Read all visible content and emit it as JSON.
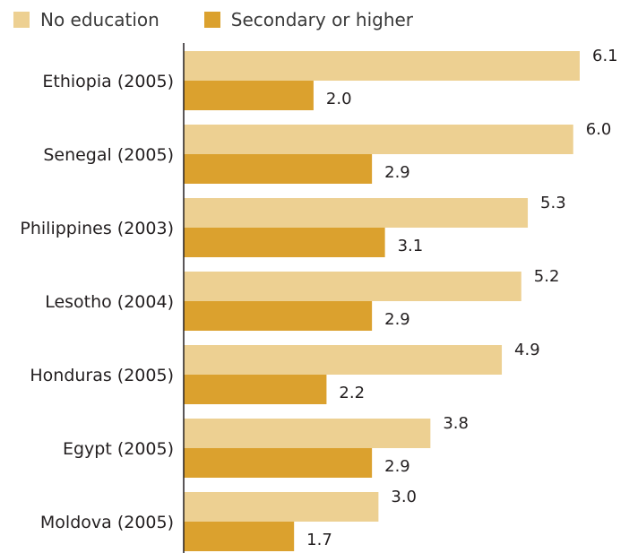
{
  "legend": {
    "items": [
      {
        "label": "No education",
        "color": "#edd092"
      },
      {
        "label": "Secondary or higher",
        "color": "#dba12e"
      }
    ],
    "placement": "top-left"
  },
  "chart_data": {
    "type": "bar",
    "orientation": "horizontal",
    "categories": [
      "Ethiopia (2005)",
      "Senegal (2005)",
      "Philippines (2003)",
      "Lesotho (2004)",
      "Honduras (2005)",
      "Egypt (2005)",
      "Moldova (2005)"
    ],
    "series": [
      {
        "name": "No education",
        "color": "#edd092",
        "values": [
          6.1,
          6.0,
          5.3,
          5.2,
          4.9,
          3.8,
          3.0
        ]
      },
      {
        "name": "Secondary or higher",
        "color": "#dba12e",
        "values": [
          2.0,
          2.9,
          3.1,
          2.9,
          2.2,
          2.9,
          1.7
        ]
      }
    ],
    "value_labels": [
      [
        "6.1",
        "6.0",
        "5.3",
        "5.2",
        "4.9",
        "3.8",
        "3.0"
      ],
      [
        "2.0",
        "2.9",
        "3.1",
        "2.9",
        "2.2",
        "2.9",
        "1.7"
      ]
    ],
    "xlim": [
      0,
      6.1
    ],
    "grid": false,
    "title": "",
    "xlabel": "",
    "ylabel": ""
  }
}
